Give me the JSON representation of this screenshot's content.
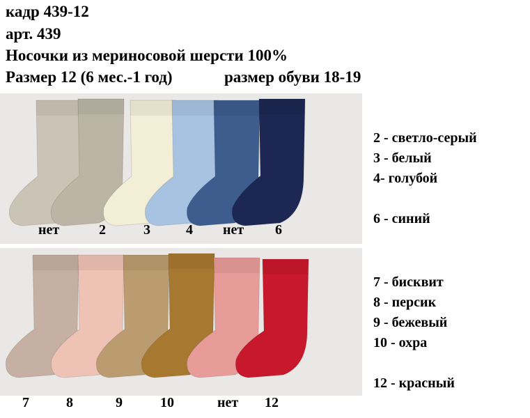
{
  "header": {
    "line1": "кадр 439-12",
    "line2": "арт. 439",
    "line3": "Носочки из мериносовой шерсти 100%",
    "size": "Размер 12 (6 мес.-1 год)",
    "shoe_size": "размер обуви 18-19"
  },
  "top_row": {
    "socks": [
      {
        "label": "нет",
        "color": "#cbc4b6"
      },
      {
        "label": "2",
        "color": "#bcb5a6"
      },
      {
        "label": "3",
        "color": "#f3eed6"
      },
      {
        "label": "4",
        "color": "#a8c3e2"
      },
      {
        "label": "нет",
        "color": "#3c5d8d"
      },
      {
        "label": "6",
        "color": "#1c2853"
      }
    ]
  },
  "bottom_row": {
    "socks": [
      {
        "label": "7",
        "color": "#c6b0a3"
      },
      {
        "label": "8",
        "color": "#efc2b6"
      },
      {
        "label": "9",
        "color": "#bb9c70"
      },
      {
        "label": "10",
        "color": "#a77930"
      },
      {
        "label": "нет",
        "color": "#e79c99"
      },
      {
        "label": "12",
        "color": "#c8182b"
      }
    ]
  },
  "legend": {
    "top": [
      "2 - светло-серый",
      "3 - белый",
      "4- голубой",
      "",
      "6 - синий"
    ],
    "bottom": [
      "7 - бисквит",
      "8 - персик",
      "9 - бежевый",
      "10 - охра",
      "",
      "12 - красный"
    ]
  }
}
